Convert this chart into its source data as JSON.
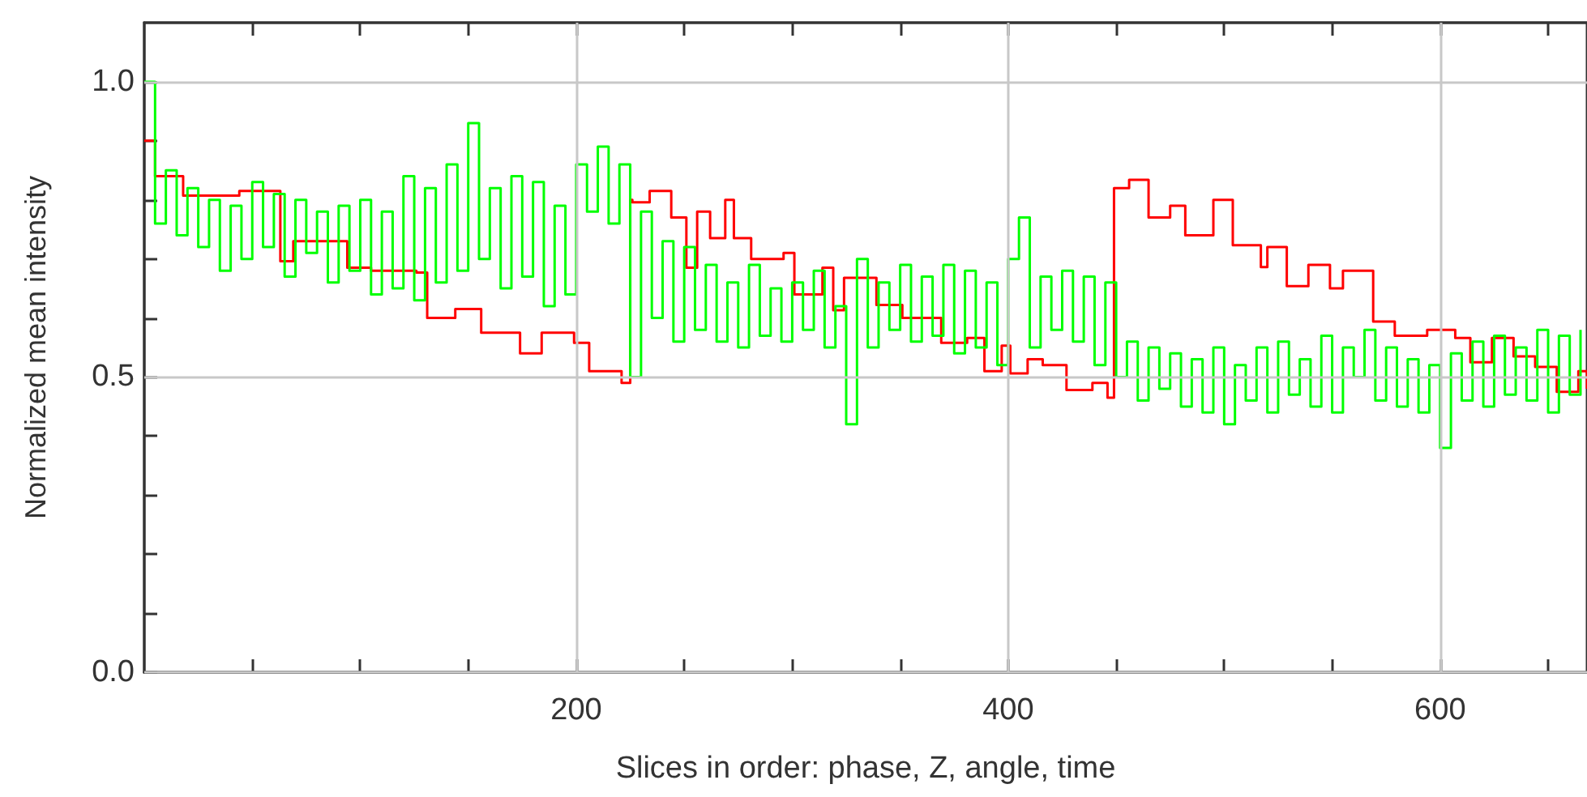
{
  "chart_data": {
    "type": "step",
    "xlabel": "Slices in order: phase, Z, angle, time",
    "ylabel": "Normalized mean intensity",
    "xlim": [
      0,
      668
    ],
    "ylim": [
      0,
      1.1
    ],
    "xticks": [
      {
        "value": 50,
        "label": null
      },
      {
        "value": 100,
        "label": null
      },
      {
        "value": 150,
        "label": null
      },
      200,
      {
        "value": 250,
        "label": null
      },
      {
        "value": 300,
        "label": null
      },
      {
        "value": 350,
        "label": null
      },
      400,
      {
        "value": 450,
        "label": null
      },
      {
        "value": 500,
        "label": null
      },
      {
        "value": 550,
        "label": null
      },
      600,
      {
        "value": 650,
        "label": null
      }
    ],
    "yticks": [
      {
        "value": 0,
        "label": "0.0"
      },
      {
        "value": 0.1,
        "label": null
      },
      {
        "value": 0.2,
        "label": null
      },
      {
        "value": 0.3,
        "label": null
      },
      {
        "value": 0.4,
        "label": null
      },
      {
        "value": 0.5,
        "label": "0.5"
      },
      {
        "value": 0.6,
        "label": null
      },
      {
        "value": 0.7,
        "label": null
      },
      {
        "value": 0.8,
        "label": null
      },
      {
        "value": 0.9,
        "label": null
      },
      {
        "value": 1.0,
        "label": "1.0"
      }
    ],
    "grid": true,
    "marker": "none",
    "line_style": "solid",
    "series": [
      {
        "color": "#ff0000",
        "x": [
          0,
          5,
          18,
          44,
          63,
          69,
          94,
          105,
          126,
          131,
          144,
          156,
          174,
          184,
          199,
          206,
          221,
          225,
          226,
          234,
          244,
          251,
          256,
          262,
          269,
          273,
          281,
          296,
          301,
          314,
          319,
          324,
          339,
          351,
          369,
          381,
          389,
          397,
          401,
          409,
          416,
          427,
          439,
          446,
          449,
          456,
          465,
          475,
          482,
          495,
          504,
          517,
          520,
          529,
          539,
          549,
          555,
          569,
          579,
          594,
          607,
          614,
          624,
          634,
          644,
          654,
          664,
          668
        ],
        "values": [
          0.9,
          0.84,
          0.807,
          0.815,
          0.696,
          0.73,
          0.685,
          0.68,
          0.677,
          0.6,
          0.615,
          0.575,
          0.54,
          0.575,
          0.558,
          0.51,
          0.49,
          0.8,
          0.796,
          0.815,
          0.77,
          0.685,
          0.78,
          0.735,
          0.8,
          0.735,
          0.7,
          0.71,
          0.64,
          0.685,
          0.613,
          0.668,
          0.622,
          0.6,
          0.558,
          0.566,
          0.51,
          0.553,
          0.506,
          0.53,
          0.52,
          0.478,
          0.49,
          0.465,
          0.82,
          0.834,
          0.77,
          0.79,
          0.74,
          0.8,
          0.723,
          0.686,
          0.72,
          0.654,
          0.69,
          0.65,
          0.68,
          0.594,
          0.57,
          0.58,
          0.566,
          0.525,
          0.566,
          0.535,
          0.517,
          0.475,
          0.51,
          0.48
        ]
      },
      {
        "color": "#00ff00",
        "x": [
          0,
          5,
          10,
          15,
          20,
          25,
          30,
          35,
          40,
          45,
          50,
          55,
          60,
          65,
          70,
          75,
          80,
          85,
          90,
          95,
          100,
          105,
          110,
          115,
          120,
          125,
          130,
          135,
          140,
          145,
          150,
          155,
          160,
          165,
          170,
          175,
          180,
          185,
          190,
          195,
          200,
          205,
          210,
          215,
          220,
          225,
          230,
          235,
          240,
          245,
          250,
          255,
          260,
          265,
          270,
          275,
          280,
          285,
          290,
          295,
          300,
          305,
          310,
          315,
          320,
          325,
          330,
          335,
          340,
          345,
          350,
          355,
          360,
          365,
          370,
          375,
          380,
          385,
          390,
          395,
          400,
          405,
          410,
          415,
          420,
          425,
          430,
          435,
          440,
          445,
          450,
          455,
          460,
          465,
          470,
          475,
          480,
          485,
          490,
          495,
          500,
          505,
          510,
          515,
          520,
          525,
          530,
          535,
          540,
          545,
          550,
          555,
          560,
          565,
          570,
          575,
          580,
          585,
          590,
          595,
          600,
          605,
          610,
          615,
          620,
          625,
          630,
          635,
          640,
          645,
          650,
          655,
          660,
          665
        ],
        "values": [
          1.0,
          0.76,
          0.85,
          0.74,
          0.82,
          0.72,
          0.8,
          0.68,
          0.79,
          0.7,
          0.83,
          0.72,
          0.81,
          0.67,
          0.8,
          0.71,
          0.78,
          0.66,
          0.79,
          0.68,
          0.8,
          0.64,
          0.78,
          0.65,
          0.84,
          0.63,
          0.82,
          0.66,
          0.86,
          0.68,
          0.93,
          0.7,
          0.82,
          0.65,
          0.84,
          0.67,
          0.83,
          0.62,
          0.79,
          0.64,
          0.86,
          0.78,
          0.89,
          0.76,
          0.86,
          0.5,
          0.78,
          0.6,
          0.73,
          0.56,
          0.72,
          0.58,
          0.69,
          0.56,
          0.66,
          0.55,
          0.69,
          0.57,
          0.65,
          0.56,
          0.66,
          0.58,
          0.68,
          0.55,
          0.62,
          0.42,
          0.7,
          0.55,
          0.66,
          0.58,
          0.69,
          0.56,
          0.67,
          0.57,
          0.69,
          0.54,
          0.68,
          0.55,
          0.66,
          0.52,
          0.7,
          0.77,
          0.55,
          0.67,
          0.58,
          0.68,
          0.56,
          0.67,
          0.52,
          0.66,
          0.5,
          0.56,
          0.46,
          0.55,
          0.48,
          0.54,
          0.45,
          0.53,
          0.44,
          0.55,
          0.42,
          0.52,
          0.46,
          0.55,
          0.44,
          0.56,
          0.47,
          0.53,
          0.45,
          0.57,
          0.44,
          0.55,
          0.5,
          0.58,
          0.46,
          0.55,
          0.45,
          0.53,
          0.44,
          0.52,
          0.38,
          0.54,
          0.46,
          0.56,
          0.45,
          0.57,
          0.47,
          0.55,
          0.46,
          0.58,
          0.44,
          0.57,
          0.47,
          0.58
        ]
      }
    ]
  }
}
